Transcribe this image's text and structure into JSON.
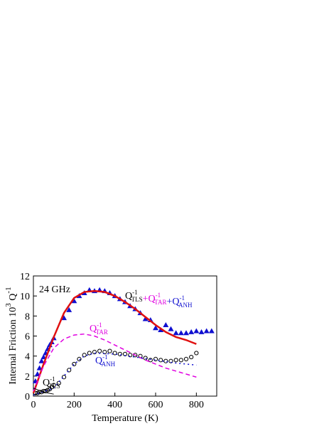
{
  "chart_data": {
    "type": "scatter",
    "xlabel": "Temperature (K)",
    "ylabel": {
      "text": "Internal Friction 10",
      "sup": "3",
      "text2": " Q",
      "sup2": "-1"
    },
    "xlim": [
      0,
      900
    ],
    "xticks": [
      0,
      200,
      400,
      600,
      800
    ],
    "ylim": [
      0,
      12
    ],
    "yticks": [
      0,
      2,
      4,
      6,
      8,
      10,
      12
    ],
    "annotations": [
      {
        "text": "24 GHz"
      },
      {
        "joiner": "+",
        "terms": [
          {
            "base": "Q",
            "sup": "-1",
            "sub": "TLS",
            "color": "#000000"
          },
          {
            "base": "Q",
            "sup": "-1",
            "sub": "TAR",
            "color": "#e000e0"
          },
          {
            "base": "Q",
            "sup": "-1",
            "sub": "ANH",
            "color": "#1010d0"
          }
        ]
      },
      {
        "terms": [
          {
            "base": "Q",
            "sup": "-1",
            "sub": "TAR",
            "color": "#e000e0"
          }
        ]
      },
      {
        "terms": [
          {
            "base": "Q",
            "sup": "-1",
            "sub": "ANH",
            "color": "#1010d0"
          }
        ]
      },
      {
        "terms": [
          {
            "base": "Q",
            "sup": "-1",
            "sub": "TLS",
            "color": "#000000"
          }
        ]
      }
    ],
    "series": [
      {
        "style": "triangle",
        "color": "#1010d0",
        "x": [
          10,
          20,
          30,
          40,
          50,
          60,
          70,
          80,
          90,
          100,
          150,
          175,
          200,
          225,
          250,
          275,
          300,
          325,
          350,
          375,
          400,
          425,
          450,
          475,
          500,
          525,
          550,
          575,
          600,
          625,
          650,
          675,
          700,
          725,
          750,
          775,
          800,
          825,
          850,
          875
        ],
        "values": [
          1.5,
          2.2,
          2.8,
          3.5,
          3.9,
          4.3,
          4.7,
          5.1,
          5.4,
          5.8,
          7.8,
          8.6,
          9.5,
          10.0,
          10.3,
          10.6,
          10.5,
          10.6,
          10.5,
          10.3,
          10.0,
          9.7,
          9.4,
          9.0,
          8.7,
          8.3,
          7.7,
          7.6,
          6.8,
          6.6,
          7.1,
          6.7,
          6.3,
          6.3,
          6.3,
          6.4,
          6.5,
          6.4,
          6.5,
          6.5
        ]
      },
      {
        "style": "circle",
        "color": "#000000",
        "x": [
          10,
          20,
          30,
          40,
          50,
          60,
          70,
          80,
          90,
          100,
          125,
          150,
          175,
          200,
          225,
          250,
          275,
          300,
          325,
          350,
          375,
          400,
          425,
          450,
          475,
          500,
          525,
          550,
          575,
          600,
          625,
          650,
          675,
          700,
          725,
          750,
          775,
          800
        ],
        "values": [
          0.3,
          0.3,
          0.4,
          0.4,
          0.5,
          0.5,
          0.6,
          0.7,
          0.9,
          1.1,
          1.3,
          1.9,
          2.6,
          3.2,
          3.7,
          4.1,
          4.3,
          4.4,
          4.5,
          4.4,
          4.5,
          4.3,
          4.2,
          4.2,
          4.1,
          4.1,
          4.0,
          3.8,
          3.6,
          3.7,
          3.6,
          3.5,
          3.5,
          3.6,
          3.6,
          3.7,
          3.9,
          4.3
        ]
      },
      {
        "style": "solid",
        "color": "#e01010",
        "x": [
          0,
          50,
          100,
          150,
          200,
          250,
          300,
          350,
          400,
          450,
          500,
          550,
          600,
          650,
          700,
          750,
          800
        ],
        "values": [
          0.3,
          3.2,
          5.9,
          8.3,
          9.8,
          10.4,
          10.5,
          10.4,
          10.0,
          9.4,
          8.7,
          7.9,
          7.1,
          6.4,
          5.9,
          5.6,
          5.2
        ]
      },
      {
        "style": "dashed",
        "color": "#e000e0",
        "x": [
          0,
          50,
          100,
          150,
          200,
          250,
          300,
          350,
          400,
          450,
          500,
          550,
          600,
          650,
          700,
          750,
          800
        ],
        "values": [
          0.5,
          3.0,
          4.8,
          5.7,
          6.1,
          6.2,
          6.0,
          5.6,
          5.1,
          4.6,
          4.1,
          3.6,
          3.2,
          2.8,
          2.5,
          2.2,
          1.9
        ]
      },
      {
        "style": "dotted",
        "color": "#1010d0",
        "x": [
          0,
          100,
          150,
          200,
          250,
          300,
          400,
          500,
          600,
          700,
          800
        ],
        "values": [
          0.1,
          0.8,
          2.0,
          3.2,
          4.0,
          4.3,
          4.2,
          3.9,
          3.6,
          3.3,
          3.1
        ]
      },
      {
        "style": "solid-thin",
        "color": "#000000",
        "x": [
          0,
          25,
          50,
          100
        ],
        "values": [
          0.8,
          0.6,
          0.4,
          0.2
        ]
      }
    ]
  }
}
